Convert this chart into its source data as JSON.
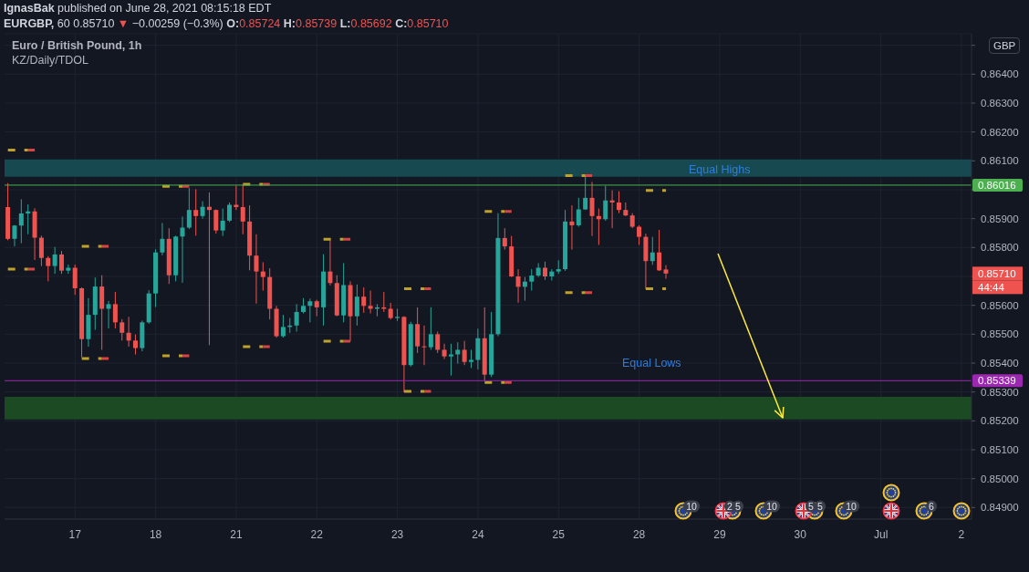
{
  "chart_data": {
    "type": "candlestick",
    "title": "Euro / British Pound, 1h",
    "subtitle": "KZ/Daily/TDOL",
    "ylabel": "GBP",
    "annotations": [
      "IgnasBak published on June 28, 2021 08:15:18 EDT",
      "EURGBP, 60 0.85710 ▼ −0.00259 (−0.3%) O:0.85724 H:0.85739 L:0.85692 C:0.85710",
      "Equal Highs",
      "Equal Lows",
      "0.85710",
      "44:44",
      "10",
      "2",
      "5",
      "10",
      "5",
      "5",
      "10",
      "6"
    ],
    "categories": [
      null,
      null,
      null,
      null,
      null,
      null,
      null,
      null,
      null,
      null,
      "17",
      null,
      null,
      null,
      null,
      null,
      null,
      null,
      null,
      null,
      null,
      null,
      "18",
      null,
      null,
      null,
      null,
      null,
      null,
      null,
      null,
      null,
      null,
      null,
      "21",
      null,
      null,
      null,
      null,
      null,
      null,
      null,
      null,
      null,
      null,
      null,
      "22",
      null,
      null,
      null,
      null,
      null,
      null,
      null,
      null,
      null,
      null,
      null,
      "23",
      null,
      null,
      null,
      null,
      null,
      null,
      null,
      null,
      null,
      null,
      null,
      "24",
      null,
      null,
      null,
      null,
      null,
      null,
      null,
      null,
      null,
      null,
      null,
      "25",
      null,
      null,
      null,
      null,
      null,
      null,
      null,
      null,
      null,
      null,
      null,
      "28",
      null,
      null,
      null,
      null,
      null,
      null,
      null,
      null,
      null,
      null,
      null,
      "29",
      null,
      null,
      null,
      null,
      null,
      null,
      null,
      null,
      null,
      null,
      null,
      "30",
      null,
      null,
      null,
      null,
      null,
      null,
      null,
      null,
      null,
      null,
      null,
      "Jul",
      null,
      null,
      null,
      null,
      null,
      null,
      null,
      null,
      null,
      null,
      null,
      "2",
      null
    ],
    "ohlc": [
      [
        0.8594,
        0.86023,
        0.85825,
        0.8583
      ],
      [
        0.8583,
        0.85878,
        0.85804,
        0.85876
      ],
      [
        0.85876,
        0.85967,
        0.85815,
        0.85918
      ],
      [
        0.85918,
        0.85949,
        0.85846,
        0.85925
      ],
      [
        0.85925,
        0.85936,
        0.85757,
        0.85834
      ],
      [
        0.85834,
        0.85841,
        0.85736,
        0.85764
      ],
      [
        0.85764,
        0.8577,
        0.85683,
        0.85736
      ],
      [
        0.85736,
        0.85802,
        0.85709,
        0.85776
      ],
      [
        0.85776,
        0.85788,
        0.85709,
        0.8572
      ],
      [
        0.8572,
        0.85741,
        0.85709,
        0.8573
      ],
      [
        0.8573,
        0.85741,
        0.85636,
        0.85659
      ],
      [
        0.85659,
        0.85662,
        0.8542,
        0.85483
      ],
      [
        0.85483,
        0.85625,
        0.85457,
        0.85567
      ],
      [
        0.85567,
        0.85696,
        0.85515,
        0.85665
      ],
      [
        0.85665,
        0.85704,
        0.85446,
        0.85588
      ],
      [
        0.85588,
        0.85615,
        0.8552,
        0.85604
      ],
      [
        0.85604,
        0.85646,
        0.8552,
        0.85541
      ],
      [
        0.85541,
        0.85552,
        0.85478,
        0.85505
      ],
      [
        0.85505,
        0.8556,
        0.85457,
        0.85478
      ],
      [
        0.85478,
        0.85499,
        0.8543,
        0.85452
      ],
      [
        0.85452,
        0.85547,
        0.85441,
        0.85541
      ],
      [
        0.85541,
        0.85652,
        0.85536,
        0.85641
      ],
      [
        0.85641,
        0.85794,
        0.85594,
        0.85783
      ],
      [
        0.85783,
        0.85885,
        0.85773,
        0.8583
      ],
      [
        0.8583,
        0.85867,
        0.85674,
        0.85704
      ],
      [
        0.85704,
        0.85841,
        0.85683,
        0.85838
      ],
      [
        0.85838,
        0.85907,
        0.85678,
        0.85869
      ],
      [
        0.85869,
        0.86006,
        0.85864,
        0.8593
      ],
      [
        0.8593,
        0.86002,
        0.85841,
        0.85909
      ],
      [
        0.85909,
        0.8596,
        0.859,
        0.85941
      ],
      [
        0.85941,
        0.85991,
        0.85462,
        0.8593
      ],
      [
        0.8593,
        0.85932,
        0.85848,
        0.85859
      ],
      [
        0.85859,
        0.85935,
        0.8584,
        0.85893
      ],
      [
        0.85893,
        0.85956,
        0.85888,
        0.85948
      ],
      [
        0.85948,
        0.86014,
        0.8593,
        0.8594
      ],
      [
        0.8594,
        0.86019,
        0.85846,
        0.8589
      ],
      [
        0.8589,
        0.85946,
        0.85721,
        0.85772
      ],
      [
        0.85772,
        0.85846,
        0.85606,
        0.85717
      ],
      [
        0.85717,
        0.85749,
        0.85651,
        0.85698
      ],
      [
        0.85698,
        0.85728,
        0.85551,
        0.85588
      ],
      [
        0.85588,
        0.85598,
        0.85488,
        0.85493
      ],
      [
        0.85493,
        0.85567,
        0.85488,
        0.85525
      ],
      [
        0.85525,
        0.85556,
        0.85505,
        0.8553
      ],
      [
        0.8553,
        0.85604,
        0.85509,
        0.85577
      ],
      [
        0.85577,
        0.85625,
        0.85572,
        0.85598
      ],
      [
        0.85598,
        0.85623,
        0.85541,
        0.85614
      ],
      [
        0.85614,
        0.85619,
        0.85562,
        0.85593
      ],
      [
        0.85593,
        0.85777,
        0.8553,
        0.85717
      ],
      [
        0.85717,
        0.85825,
        0.85669,
        0.85677
      ],
      [
        0.85677,
        0.85704,
        0.85562,
        0.85565
      ],
      [
        0.85565,
        0.85746,
        0.85541,
        0.8567
      ],
      [
        0.8567,
        0.85683,
        0.85477,
        0.85562
      ],
      [
        0.85562,
        0.85672,
        0.8553,
        0.8563
      ],
      [
        0.8563,
        0.85662,
        0.85574,
        0.85598
      ],
      [
        0.85598,
        0.85651,
        0.85572,
        0.85588
      ],
      [
        0.85588,
        0.85604,
        0.85562,
        0.85593
      ],
      [
        0.85593,
        0.85646,
        0.85577,
        0.85588
      ],
      [
        0.85588,
        0.85609,
        0.85551,
        0.85556
      ],
      [
        0.85556,
        0.85588,
        0.85546,
        0.8556
      ],
      [
        0.8556,
        0.85562,
        0.85299,
        0.85393
      ],
      [
        0.85393,
        0.85543,
        0.85388,
        0.85535
      ],
      [
        0.85535,
        0.85593,
        0.85435,
        0.85458
      ],
      [
        0.85458,
        0.8553,
        0.85393,
        0.85455
      ],
      [
        0.85455,
        0.85593,
        0.85446,
        0.855
      ],
      [
        0.855,
        0.85509,
        0.85435,
        0.85446
      ],
      [
        0.85446,
        0.85467,
        0.85414,
        0.85423
      ],
      [
        0.85423,
        0.85467,
        0.85357,
        0.8543
      ],
      [
        0.8543,
        0.85472,
        0.85398,
        0.85446
      ],
      [
        0.85446,
        0.85477,
        0.85393,
        0.85404
      ],
      [
        0.85404,
        0.85446,
        0.85383,
        0.85411
      ],
      [
        0.85411,
        0.85519,
        0.85378,
        0.85486
      ],
      [
        0.85486,
        0.85593,
        0.85339,
        0.8536
      ],
      [
        0.8536,
        0.85577,
        0.85352,
        0.855
      ],
      [
        0.855,
        0.85919,
        0.85493,
        0.85833
      ],
      [
        0.85833,
        0.85867,
        0.85793,
        0.85804
      ],
      [
        0.85804,
        0.8584,
        0.85698,
        0.857
      ],
      [
        0.857,
        0.85725,
        0.85609,
        0.85664
      ],
      [
        0.85664,
        0.85698,
        0.85616,
        0.85682
      ],
      [
        0.85682,
        0.85725,
        0.85651,
        0.85703
      ],
      [
        0.85703,
        0.85746,
        0.85698,
        0.8573
      ],
      [
        0.8573,
        0.85751,
        0.85688,
        0.857
      ],
      [
        0.857,
        0.85725,
        0.85686,
        0.85717
      ],
      [
        0.85717,
        0.85756,
        0.85709,
        0.85725
      ],
      [
        0.85725,
        0.8593,
        0.85719,
        0.8589
      ],
      [
        0.8589,
        0.85946,
        0.85793,
        0.85877
      ],
      [
        0.85877,
        0.85972,
        0.85872,
        0.85932
      ],
      [
        0.85932,
        0.8605,
        0.8593,
        0.85972
      ],
      [
        0.85972,
        0.86027,
        0.8584,
        0.85909
      ],
      [
        0.85909,
        0.85935,
        0.85809,
        0.85898
      ],
      [
        0.85898,
        0.86014,
        0.85893,
        0.85963
      ],
      [
        0.85963,
        0.85998,
        0.85867,
        0.85956
      ],
      [
        0.85956,
        0.85995,
        0.85919,
        0.8593
      ],
      [
        0.8593,
        0.85956,
        0.85909,
        0.85911
      ],
      [
        0.85911,
        0.85919,
        0.85867,
        0.85872
      ],
      [
        0.85872,
        0.85877,
        0.85809,
        0.85837
      ],
      [
        0.85837,
        0.85848,
        0.85656,
        0.85753
      ],
      [
        0.85753,
        0.85837,
        0.8574,
        0.85783
      ],
      [
        0.85783,
        0.85861,
        0.85719,
        0.85721
      ],
      [
        0.85724,
        0.85739,
        0.85692,
        0.8571
      ],
      null,
      null,
      null,
      null,
      null,
      null,
      null,
      null,
      null,
      null,
      null,
      null,
      null,
      null,
      null,
      null,
      null,
      null,
      null,
      null,
      null,
      null,
      null,
      null,
      null,
      null,
      null,
      null,
      null,
      null,
      null,
      null,
      null,
      null,
      null,
      null,
      null,
      null,
      null,
      null,
      null,
      null,
      null,
      null,
      null
    ],
    "colors": [
      "#ef5350",
      "#26a69a",
      "#26a69a",
      "#26a69a",
      "#ef5350",
      "#ef5350",
      "#ef5350",
      "#26a69a",
      "#ef5350",
      "#26a69a",
      "#ef5350",
      "#ef5350",
      "#26a69a",
      "#26a69a",
      "#ef5350",
      "#26a69a",
      "#ef5350",
      "#ef5350",
      "#ef5350",
      "#ef5350",
      "#26a69a",
      "#26a69a",
      "#26a69a",
      "#26a69a",
      "#ef5350",
      "#26a69a",
      "#26a69a",
      "#26a69a",
      "#ef5350",
      "#26a69a",
      "#ef5350",
      "#ef5350",
      "#26a69a",
      "#26a69a",
      "#ef5350",
      "#ef5350",
      "#ef5350",
      "#ef5350",
      "#ef5350",
      "#ef5350",
      "#ef5350",
      "#26a69a",
      "#26a69a",
      "#26a69a",
      "#26a69a",
      "#26a69a",
      "#ef5350",
      "#26a69a",
      "#ef5350",
      "#ef5350",
      "#26a69a",
      "#ef5350",
      "#26a69a",
      "#ef5350",
      "#ef5350",
      "#26a69a",
      "#ef5350",
      "#ef5350",
      "#26a69a",
      "#ef5350",
      "#26a69a",
      "#ef5350",
      "#ef5350",
      "#26a69a",
      "#ef5350",
      "#ef5350",
      "#26a69a",
      "#26a69a",
      "#ef5350",
      "#26a69a",
      "#26a69a",
      "#ef5350",
      "#26a69a",
      "#26a69a",
      "#ef5350",
      "#ef5350",
      "#ef5350",
      "#26a69a",
      "#26a69a",
      "#26a69a",
      "#ef5350",
      "#26a69a",
      "#26a69a",
      "#26a69a",
      "#ef5350",
      "#26a69a",
      "#26a69a",
      "#ef5350",
      "#ef5350",
      "#26a69a",
      "#ef5350",
      "#ef5350",
      "#ef5350",
      "#ef5350",
      "#ef5350",
      "#ef5350",
      "#26a69a",
      "#ef5350",
      "#ef5350",
      null,
      null,
      null,
      null,
      null,
      null,
      null,
      null,
      null,
      null,
      null,
      null,
      null,
      null,
      null,
      null,
      null,
      null,
      null,
      null,
      null,
      null,
      null,
      null,
      null,
      null,
      null,
      null,
      null,
      null,
      null,
      null,
      null,
      null,
      null,
      null,
      null,
      null,
      null,
      null,
      null,
      null,
      null,
      null,
      null
    ],
    "series": [
      {
        "type": "line",
        "color": "#bfa12b",
        "line_style": "dashed",
        "values": [
          0.86137,
          0.86137,
          0.86137,
          0.86137,
          null,
          null,
          null,
          null,
          null,
          null,
          null,
          0.85804,
          0.85804,
          0.85804,
          0.85804,
          null,
          null,
          null,
          null,
          null,
          null,
          null,
          null,
          0.86012,
          0.86012,
          0.86012,
          0.86012,
          null,
          null,
          null,
          null,
          null,
          null,
          null,
          null,
          0.86019,
          0.86019,
          0.86019,
          0.86019,
          null,
          null,
          null,
          null,
          null,
          null,
          null,
          null,
          0.85829,
          0.85829,
          0.85829,
          0.85829,
          null,
          null,
          null,
          null,
          null,
          null,
          null,
          null,
          0.85657,
          0.85657,
          0.85657,
          0.85657,
          null,
          null,
          null,
          null,
          null,
          null,
          null,
          null,
          0.85925,
          0.85925,
          0.85925,
          0.85925,
          null,
          null,
          null,
          null,
          null,
          null,
          null,
          null,
          0.86049,
          0.86049,
          0.86049,
          0.86049,
          null,
          null,
          null,
          null,
          null,
          null,
          null,
          null,
          0.85998,
          0.85998,
          0.85998,
          0.85998,
          null,
          null,
          null,
          null,
          null,
          null,
          null,
          null,
          null,
          null,
          null,
          null,
          null,
          null,
          null,
          null,
          null,
          null,
          null,
          null,
          null,
          null,
          null,
          null,
          null,
          null,
          null,
          null,
          null,
          null,
          null,
          null,
          null,
          null,
          null,
          null,
          null,
          null,
          null,
          null,
          null,
          null,
          null,
          null,
          null
        ]
      },
      {
        "type": "line",
        "color": "#bfa12b",
        "line_style": "dashed",
        "values": [
          0.85725,
          0.85725,
          0.85725,
          0.85725,
          null,
          null,
          null,
          null,
          null,
          null,
          null,
          0.85416,
          0.85416,
          0.85416,
          0.85416,
          null,
          null,
          null,
          null,
          null,
          null,
          null,
          null,
          0.85425,
          0.85425,
          0.85425,
          0.85425,
          null,
          null,
          null,
          null,
          null,
          null,
          null,
          null,
          0.85457,
          0.85457,
          0.85457,
          0.85457,
          null,
          null,
          null,
          null,
          null,
          null,
          null,
          null,
          0.85476,
          0.85476,
          0.85476,
          0.85476,
          null,
          null,
          null,
          null,
          null,
          null,
          null,
          null,
          0.85302,
          0.85302,
          0.85302,
          0.85302,
          null,
          null,
          null,
          null,
          null,
          null,
          null,
          null,
          0.85333,
          0.85333,
          0.85333,
          0.85333,
          null,
          null,
          null,
          null,
          null,
          null,
          null,
          null,
          0.85644,
          0.85644,
          0.85644,
          0.85644,
          null,
          null,
          null,
          null,
          null,
          null,
          null,
          null,
          0.85657,
          0.85657,
          0.85657,
          0.85657,
          null,
          null,
          null,
          null,
          null,
          null,
          null,
          null,
          null,
          null,
          null,
          null,
          null,
          null,
          null,
          null,
          null,
          null,
          null,
          null,
          null,
          null,
          null,
          null,
          null,
          null,
          null,
          null,
          null,
          null,
          null,
          null,
          null,
          null,
          null,
          null,
          null,
          null,
          null,
          null,
          null,
          null,
          null,
          null,
          null
        ]
      },
      {
        "type": "line",
        "color": "#d84343",
        "line_style": "solid",
        "values": [
          null,
          null,
          null,
          0.86137,
          0.86137,
          null,
          null,
          null,
          null,
          null,
          null,
          null,
          null,
          null,
          0.85804,
          0.85804,
          null,
          null,
          null,
          null,
          null,
          null,
          null,
          null,
          null,
          null,
          0.86012,
          0.86012,
          null,
          null,
          null,
          null,
          null,
          null,
          null,
          null,
          null,
          null,
          0.86019,
          0.86019,
          null,
          null,
          null,
          null,
          null,
          null,
          null,
          null,
          null,
          null,
          0.85829,
          0.85829,
          null,
          null,
          null,
          null,
          null,
          null,
          null,
          null,
          null,
          null,
          0.85657,
          0.85657,
          null,
          null,
          null,
          null,
          null,
          null,
          null,
          null,
          null,
          null,
          0.85925,
          0.85925,
          null,
          null,
          null,
          null,
          null,
          null,
          null,
          null,
          null,
          null,
          0.86049,
          0.86049,
          null,
          null,
          null,
          null,
          null,
          null,
          null,
          null,
          null,
          null,
          null,
          null,
          null,
          null,
          null,
          null,
          null,
          null,
          null,
          null,
          null,
          null,
          null,
          null,
          null,
          null,
          null,
          null,
          null,
          null,
          null,
          null,
          null,
          null,
          null,
          null,
          null,
          null,
          null,
          null,
          null,
          null,
          null,
          null,
          null,
          null,
          null,
          null,
          null,
          null,
          null,
          null,
          null,
          null,
          null,
          null
        ]
      },
      {
        "type": "line",
        "color": "#d84343",
        "line_style": "solid",
        "values": [
          null,
          null,
          null,
          0.85725,
          0.85725,
          null,
          null,
          null,
          null,
          null,
          null,
          null,
          null,
          null,
          0.85416,
          0.85416,
          null,
          null,
          null,
          null,
          null,
          null,
          null,
          null,
          null,
          null,
          0.85425,
          0.85425,
          null,
          null,
          null,
          null,
          null,
          null,
          null,
          null,
          null,
          null,
          0.85457,
          0.85457,
          null,
          null,
          null,
          null,
          null,
          null,
          null,
          null,
          null,
          null,
          0.85476,
          0.85476,
          null,
          null,
          null,
          null,
          null,
          null,
          null,
          null,
          null,
          null,
          0.85302,
          0.85302,
          null,
          null,
          null,
          null,
          null,
          null,
          null,
          null,
          null,
          null,
          0.85333,
          0.85333,
          null,
          null,
          null,
          null,
          null,
          null,
          null,
          null,
          null,
          null,
          0.85644,
          0.85644,
          null,
          null,
          null,
          null,
          null,
          null,
          null,
          null,
          null,
          null,
          null,
          null,
          null,
          null,
          null,
          null,
          null,
          null,
          null,
          null,
          null,
          null,
          null,
          null,
          null,
          null,
          null,
          null,
          null,
          null,
          null,
          null,
          null,
          null,
          null,
          null,
          null,
          null,
          null,
          null,
          null,
          null,
          null,
          null,
          null,
          null,
          null,
          null,
          null,
          null,
          null,
          null,
          null,
          null,
          null,
          null
        ]
      }
    ],
    "ylim": [
      0.8486,
      0.8654
    ],
    "yticks": [
      {
        "value": 0.849,
        "label": "0.84900"
      },
      {
        "value": 0.85,
        "label": "0.85000"
      },
      {
        "value": 0.851,
        "label": "0.85100"
      },
      {
        "value": 0.852,
        "label": "0.85200"
      },
      {
        "value": 0.853,
        "label": "0.85300"
      },
      {
        "value": 0.854,
        "label": "0.85400"
      },
      {
        "value": 0.855,
        "label": "0.85500"
      },
      {
        "value": 0.856,
        "label": "0.85600"
      },
      {
        "value": 0.857,
        "label": null
      },
      {
        "value": 0.858,
        "label": "0.85800"
      },
      {
        "value": 0.859,
        "label": "0.85900"
      },
      {
        "value": 0.86,
        "label": null
      },
      {
        "value": 0.861,
        "label": "0.86100"
      },
      {
        "value": 0.862,
        "label": "0.86200"
      },
      {
        "value": 0.863,
        "label": "0.86300"
      },
      {
        "value": 0.864,
        "label": "0.86400"
      },
      {
        "value": 0.865,
        "label": null
      }
    ],
    "grid": true,
    "ref_lines": [
      {
        "axis": "y",
        "value": 0.86016,
        "label": "0.86016",
        "color": "#4caf50"
      },
      {
        "axis": "y",
        "value": 0.85339,
        "label": "0.85339",
        "color": "#9c27b0"
      }
    ],
    "bands": [
      {
        "axis": "y",
        "from": 0.86045,
        "to": 0.86105,
        "color": "#164a50"
      },
      {
        "axis": "y",
        "from": 0.85205,
        "to": 0.85283,
        "color": "#1b4a23"
      }
    ]
  }
}
